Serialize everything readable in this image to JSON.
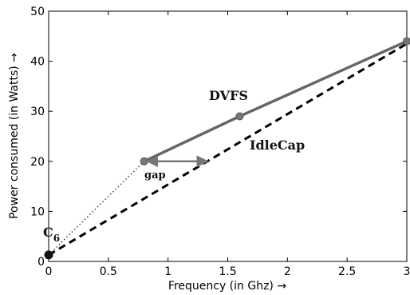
{
  "chart_data": {
    "type": "line",
    "xlabel": "Frequency (in Ghz) →",
    "ylabel": "Power consumed (in Watts) →",
    "xlim": [
      0,
      3
    ],
    "ylim": [
      0,
      50
    ],
    "x_ticks": [
      "0",
      "0.5",
      "1",
      "1.5",
      "2",
      "2.5",
      "3"
    ],
    "y_ticks": [
      "0",
      "10",
      "20",
      "30",
      "40",
      "50"
    ],
    "grid": false,
    "series": [
      {
        "name": "DVFS",
        "style": "solid",
        "color": "#666666",
        "x": [
          0.8,
          1.6,
          3.0
        ],
        "y": [
          20,
          29,
          44
        ]
      },
      {
        "name": "IdleCap",
        "style": "dashed",
        "color": "#000000",
        "x": [
          0.0,
          3.0
        ],
        "y": [
          1.3,
          43.5
        ]
      },
      {
        "name": "",
        "style": "dotted",
        "color": "#444444",
        "x": [
          0.0,
          0.8
        ],
        "y": [
          1.3,
          20
        ]
      }
    ],
    "annotations": [
      {
        "text": "DVFS",
        "x": 1.3,
        "y": 32.5
      },
      {
        "text": "IdleCap",
        "x": 1.68,
        "y": 22.6
      },
      {
        "text": "gap",
        "x": 0.8,
        "y": 16.6
      },
      {
        "text": "C",
        "sub": "6",
        "x": -0.05,
        "y": 4.6
      }
    ],
    "gap_arrow": {
      "x_from": 0.8,
      "x_to": 1.33,
      "y": 20
    },
    "c6_point": {
      "x": 0.0,
      "y": 1.3
    }
  }
}
